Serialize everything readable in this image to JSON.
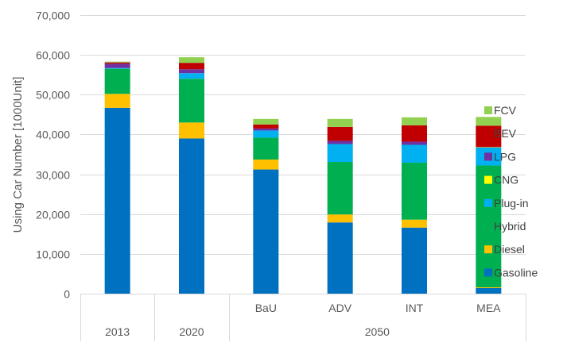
{
  "chart_data": {
    "type": "bar",
    "stacked": true,
    "title": "",
    "xlabel": "",
    "ylabel": "Using Car Number [1000Unit]",
    "ylim": [
      0,
      70000
    ],
    "yticks": [
      0,
      10000,
      20000,
      30000,
      40000,
      50000,
      60000,
      70000
    ],
    "ytick_labels": [
      "0",
      "10,000",
      "20,000",
      "30,000",
      "40,000",
      "50,000",
      "60,000",
      "70,000"
    ],
    "grid": true,
    "legend_position": "right",
    "categories": [
      "2013",
      "2020",
      "BaU",
      "ADV",
      "INT",
      "MEA"
    ],
    "category_groups": [
      {
        "label": "2013",
        "members": [
          "2013"
        ],
        "show_member_labels": false
      },
      {
        "label": "2020",
        "members": [
          "2020"
        ],
        "show_member_labels": false
      },
      {
        "label": "2050",
        "members": [
          "BaU",
          "ADV",
          "INT",
          "MEA"
        ],
        "show_member_labels": true
      }
    ],
    "series": [
      {
        "name": "Gasoline",
        "color": "#0070c0",
        "values": [
          46700,
          39000,
          31200,
          17900,
          16600,
          1400
        ]
      },
      {
        "name": "Diesel",
        "color": "#ffc000",
        "values": [
          3500,
          4000,
          2500,
          2000,
          2000,
          200
        ]
      },
      {
        "name": "Hybrid",
        "color": "#00b050",
        "values": [
          6300,
          11000,
          5500,
          13200,
          14300,
          30600
        ]
      },
      {
        "name": "Plug-in",
        "color": "#00b0f0",
        "values": [
          200,
          1400,
          1800,
          4500,
          4500,
          4500
        ]
      },
      {
        "name": "CNG",
        "color": "#ffff00",
        "values": [
          0,
          0,
          0,
          0,
          0,
          100
        ]
      },
      {
        "name": "LPG",
        "color": "#7030a0",
        "values": [
          1100,
          1000,
          500,
          800,
          800,
          100
        ]
      },
      {
        "name": "BEV",
        "color": "#c00000",
        "values": [
          300,
          1600,
          1000,
          3500,
          4100,
          5300
        ]
      },
      {
        "name": "FCV",
        "color": "#92d050",
        "values": [
          200,
          1400,
          1400,
          2000,
          2000,
          2200
        ]
      }
    ],
    "legend_order": [
      "FCV",
      "BEV",
      "LPG",
      "CNG",
      "Plug-in",
      "Hybrid",
      "Diesel",
      "Gasoline"
    ]
  }
}
